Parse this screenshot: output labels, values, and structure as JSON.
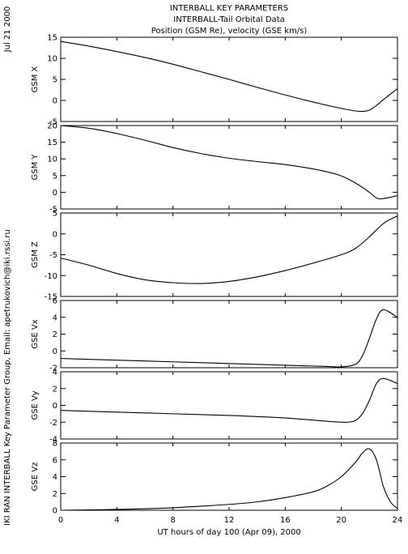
{
  "titles": [
    "INTERBALL KEY PARAMETERS",
    "INTERBALL-Tail Orbital Data",
    "Position (GSM Re), velocity (GSE km/s)"
  ],
  "side_date": "Jul 21 2000",
  "side_credit": "IKI RAN INTERBALL Key Parameter Group, Email: apetrukovich@iki.rssi.ru",
  "xaxis": {
    "label": "UT hours of day 100 (Apr 09), 2000",
    "ticks": [
      0,
      4,
      8,
      12,
      16,
      20,
      24
    ],
    "range": [
      0,
      24
    ]
  },
  "chart_data": [
    {
      "type": "line",
      "ylabel": "GSM X",
      "ylim": [
        -5,
        15
      ],
      "yticks": [
        -5,
        0,
        5,
        10,
        15
      ],
      "x": [
        0,
        2,
        4,
        6,
        8,
        10,
        12,
        14,
        16,
        18,
        20,
        21,
        21.5,
        22,
        22.5,
        23,
        24
      ],
      "y": [
        14,
        12.9,
        11.6,
        10.2,
        8.6,
        6.8,
        5.0,
        3.1,
        1.3,
        -0.4,
        -1.9,
        -2.5,
        -2.6,
        -2.3,
        -1.2,
        0.2,
        2.8
      ]
    },
    {
      "type": "line",
      "ylabel": "GSM Y",
      "ylim": [
        -5,
        20
      ],
      "yticks": [
        -5,
        0,
        5,
        10,
        15,
        20
      ],
      "x": [
        0,
        2,
        4,
        6,
        8,
        10,
        12,
        14,
        16,
        18,
        19,
        20,
        21,
        22,
        22.5,
        23,
        24
      ],
      "y": [
        20.2,
        19.2,
        17.6,
        15.6,
        13.4,
        11.6,
        10.2,
        9.2,
        8.3,
        7.0,
        6.1,
        4.9,
        2.8,
        0,
        -1.7,
        -1.9,
        -1.0
      ]
    },
    {
      "type": "line",
      "ylabel": "GSM Z",
      "ylim": [
        -15,
        5
      ],
      "yticks": [
        -15,
        -10,
        -5,
        0,
        5
      ],
      "x": [
        0,
        2,
        4,
        6,
        8,
        10,
        12,
        14,
        16,
        18,
        20,
        21,
        22,
        23,
        24
      ],
      "y": [
        -5.8,
        -7.5,
        -9.5,
        -11.0,
        -11.7,
        -11.9,
        -11.4,
        -10.3,
        -8.8,
        -7.0,
        -5.0,
        -3.5,
        -0.7,
        2.5,
        4.3
      ]
    },
    {
      "type": "line",
      "ylabel": "GSE Vx",
      "ylim": [
        -2,
        6
      ],
      "yticks": [
        -2,
        0,
        2,
        4,
        6
      ],
      "x": [
        0,
        4,
        8,
        12,
        16,
        19,
        20,
        21,
        21.5,
        22,
        22.5,
        23,
        24
      ],
      "y": [
        -0.9,
        -1.1,
        -1.3,
        -1.5,
        -1.7,
        -1.85,
        -1.9,
        -1.6,
        -0.6,
        1.5,
        3.8,
        4.9,
        4.0
      ]
    },
    {
      "type": "line",
      "ylabel": "GSE Vy",
      "ylim": [
        -4,
        4
      ],
      "yticks": [
        -4,
        -2,
        0,
        2,
        4
      ],
      "x": [
        0,
        4,
        8,
        12,
        16,
        19,
        20,
        20.5,
        21,
        21.5,
        22,
        22.5,
        23,
        24
      ],
      "y": [
        -0.6,
        -0.8,
        -1.0,
        -1.2,
        -1.5,
        -1.9,
        -2.0,
        -2.0,
        -1.8,
        -1.0,
        0.6,
        2.6,
        3.2,
        2.6
      ]
    },
    {
      "type": "line",
      "ylabel": "GSE Vz",
      "ylim": [
        0,
        8
      ],
      "yticks": [
        0,
        2,
        4,
        6,
        8
      ],
      "x": [
        0,
        4,
        8,
        12,
        14,
        16,
        18,
        19,
        20,
        21,
        21.5,
        22,
        22.5,
        23,
        23.5,
        24
      ],
      "y": [
        -0.2,
        0.1,
        0.3,
        0.7,
        1.0,
        1.5,
        2.2,
        2.9,
        4.0,
        5.7,
        6.8,
        7.3,
        6.0,
        2.8,
        1.0,
        0.2
      ]
    }
  ]
}
